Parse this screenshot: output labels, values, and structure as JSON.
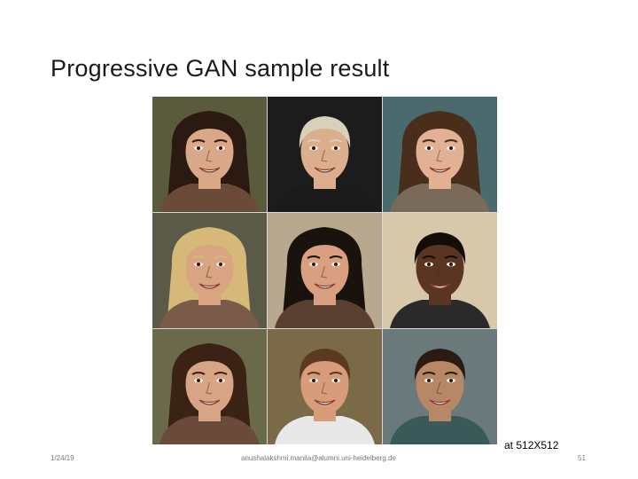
{
  "slide": {
    "title": "Progressive GAN sample result",
    "resolution_label": "at 512X512",
    "footer": {
      "date": "1/24/19",
      "email": "anushalakshmi.manila@alumni.uni-heidelberg.de",
      "page_number": "51"
    }
  },
  "face_grid": {
    "rows": 3,
    "columns": 3,
    "faces": [
      {
        "name": "face-1",
        "bg": "#5a5a3c",
        "skin": "#d9a888",
        "hair": "#2a1a12",
        "shirt": "#6b4a3a",
        "long_hair": true
      },
      {
        "name": "face-2",
        "bg": "#1c1c1c",
        "skin": "#dcae8e",
        "hair": "#d8d0b8",
        "shirt": "#1a1a1a",
        "long_hair": false
      },
      {
        "name": "face-3",
        "bg": "#4a6a6e",
        "skin": "#e2b092",
        "hair": "#4a2e1c",
        "shirt": "#7a6a5a",
        "long_hair": true
      },
      {
        "name": "face-4",
        "bg": "#5a5a48",
        "skin": "#d8a482",
        "hair": "#d6b878",
        "shirt": "#7a5a48",
        "long_hair": true
      },
      {
        "name": "face-5",
        "bg": "#b8a890",
        "skin": "#d8a080",
        "hair": "#1a120c",
        "shirt": "#5a4030",
        "long_hair": true
      },
      {
        "name": "face-6",
        "bg": "#d8c8aa",
        "skin": "#5a3522",
        "hair": "#140c08",
        "shirt": "#2a2a2a",
        "long_hair": false
      },
      {
        "name": "face-7",
        "bg": "#6a6a4a",
        "skin": "#d8a486",
        "hair": "#3a2214",
        "shirt": "#6a4a3a",
        "long_hair": true
      },
      {
        "name": "face-8",
        "bg": "#7a6a48",
        "skin": "#d89c7a",
        "hair": "#5a3a20",
        "shirt": "#e8e8e8",
        "long_hair": false
      },
      {
        "name": "face-9",
        "bg": "#6a7a7a",
        "skin": "#b88866",
        "hair": "#2a1c12",
        "shirt": "#3a5a5a",
        "long_hair": false
      }
    ]
  }
}
